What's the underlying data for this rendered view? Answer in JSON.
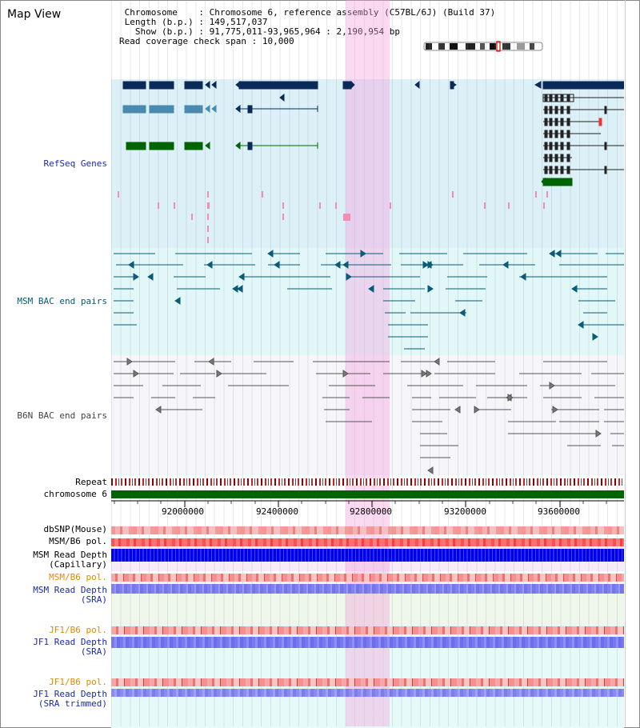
{
  "page": {
    "title": "Map View"
  },
  "info": {
    "chromosome_label": "Chromosome",
    "chromosome_value": "Chromosome 6, reference assembly (C57BL/6J) (Build 37)",
    "length_label": "Length (b.p.)",
    "length_value": "149,517,037",
    "show_label": "Show (b.p.)",
    "show_value": "91,775,011-93,965,964 : 2,190,954 bp",
    "coverage_label": "Read coverage check span",
    "coverage_value": "10,000"
  },
  "tracks": {
    "refseq": "RefSeq Genes",
    "msm_bac": "MSM BAC end pairs",
    "b6n_bac": "B6N BAC end pairs",
    "repeat": "Repeat",
    "chromosome": "chromosome 6",
    "dbsnp": "dbSNP(Mouse)",
    "msm_b6_pol_1": "MSM/B6 pol.",
    "msm_read_depth_cap_1": "MSM Read Depth",
    "msm_read_depth_cap_2": "(Capillary)",
    "msm_b6_pol_2": "MSM/B6 pol.",
    "msm_read_depth_sra_1": "MSM Read Depth",
    "msm_read_depth_sra_2": "(SRA)",
    "jf1_b6_pol_1": "JF1/B6 pol.",
    "jf1_read_depth_sra_1": "JF1 Read Depth",
    "jf1_read_depth_sra_2": "(SRA)",
    "jf1_b6_pol_2": "JF1/B6 pol.",
    "jf1_read_depth_trim_1": "JF1 Read Depth",
    "jf1_read_depth_trim_2": "(SRA trimmed)"
  },
  "axis": {
    "ticks": [
      "92000000",
      "92400000",
      "92800000",
      "93200000",
      "93600000"
    ]
  },
  "colors": {
    "refseq_bg": "#dcf0f8",
    "msm_bg": "#e2f8f8",
    "b6n_bg": "#f6f6fa",
    "highlight": "#f5a0dc",
    "gene_dark": "#0a2a5a",
    "gene_mid": "#4a8ab0",
    "gene_green": "#006400",
    "depth_blue": "#2020f0",
    "depth_light": "#7b7bf0",
    "chrom_green": "#006400"
  }
}
